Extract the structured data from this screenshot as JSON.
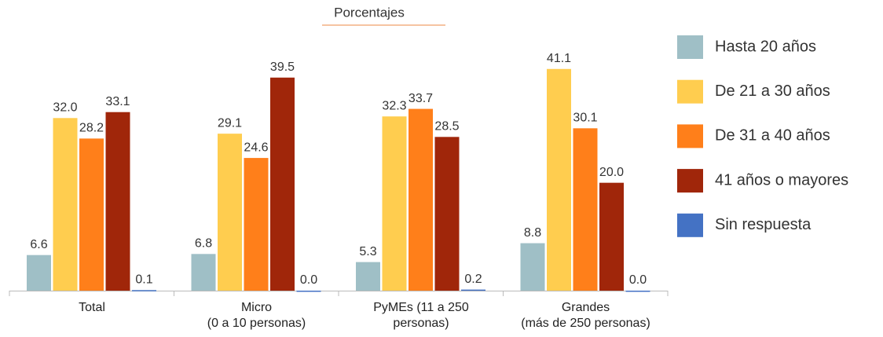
{
  "chart_data": {
    "type": "bar",
    "title": "Porcentajes",
    "categories": [
      "Total",
      "Micro\n(0 a 10 personas)",
      "PyMEs (11 a 250\npersonas)",
      "Grandes\n(más de 250 personas)"
    ],
    "series": [
      {
        "name": "Hasta 20 años",
        "color": "#9fbfc6",
        "values": [
          6.6,
          6.8,
          5.3,
          8.8
        ],
        "value_labels": [
          "6.6",
          "6.8",
          "5.3",
          "8.8"
        ]
      },
      {
        "name": "De 21 a 30 años",
        "color": "#ffcd4f",
        "values": [
          32,
          29.1,
          32.3,
          41.1
        ],
        "value_labels": [
          "32.0",
          "29.1",
          "32.3",
          "41.1"
        ]
      },
      {
        "name": "De 31 a 40 años",
        "color": "#ff7f1a",
        "values": [
          28.2,
          24.6,
          33.7,
          30.1
        ],
        "value_labels": [
          "28.2",
          "24.6",
          "33.7",
          "30.1"
        ]
      },
      {
        "name": "41 años o mayores",
        "color": "#a0260a",
        "values": [
          33.1,
          39.5,
          28.5,
          20
        ],
        "value_labels": [
          "33.1",
          "39.5",
          "28.5",
          "20.0"
        ]
      },
      {
        "name": "Sin respuesta",
        "color": "#4472c4",
        "values": [
          0.1,
          0,
          0.2,
          0
        ],
        "value_labels": [
          "0.1",
          "0.0",
          "0.2",
          "0.0"
        ]
      }
    ],
    "ylim": [
      0,
      45
    ]
  }
}
